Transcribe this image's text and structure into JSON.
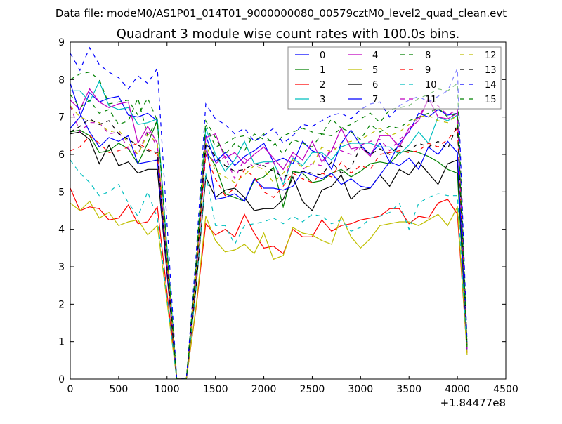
{
  "header": {
    "suptitle": "Data file: modeM0/AS1P01_014T01_9000000080_00579cztM0_level2_quad_clean.evt"
  },
  "chart_data": {
    "type": "line",
    "title": "Quadrant 3 module wise count rates with 100.0s bins.",
    "xlabel": "",
    "ylabel": "",
    "x_offset_label": "+1.84477e8",
    "xlim": [
      0,
      4500
    ],
    "ylim": [
      0,
      9
    ],
    "xticks": [
      "0",
      "500",
      "1000",
      "1500",
      "2000",
      "2500",
      "3000",
      "3500",
      "4000",
      "4500"
    ],
    "yticks": [
      "0",
      "1",
      "2",
      "3",
      "4",
      "5",
      "6",
      "7",
      "8",
      "9"
    ],
    "grid": false,
    "legend_placement": "top-right",
    "legend_columns": 4,
    "x": [
      0,
      100,
      200,
      300,
      400,
      500,
      600,
      700,
      800,
      900,
      1000,
      1100,
      1200,
      1300,
      1400,
      1500,
      1600,
      1700,
      1800,
      1900,
      2000,
      2100,
      2200,
      2300,
      2400,
      2500,
      2600,
      2700,
      2800,
      2900,
      3000,
      3100,
      3200,
      3300,
      3400,
      3500,
      3600,
      3700,
      3800,
      3900,
      4000,
      4100
    ],
    "series": [
      {
        "name": "0",
        "color": "#0000ff",
        "dashed": false,
        "values": [
          6.7,
          7.0,
          7.65,
          7.4,
          7.5,
          7.55,
          7.05,
          7.0,
          7.1,
          6.9,
          3.45,
          0,
          0,
          2.9,
          6.5,
          5.8,
          6.05,
          5.7,
          5.95,
          6.1,
          6.3,
          5.8,
          5.9,
          5.75,
          6.35,
          6.1,
          6.0,
          5.6,
          6.3,
          6.65,
          6.25,
          6.0,
          6.3,
          5.8,
          6.3,
          6.6,
          7.1,
          7.0,
          7.2,
          7.05,
          7.1,
          0.8
        ]
      },
      {
        "name": "1",
        "color": "#008000",
        "dashed": false,
        "values": [
          6.6,
          6.65,
          6.5,
          6.05,
          6.1,
          6.3,
          6.15,
          5.75,
          6.3,
          6.9,
          3.45,
          0,
          0,
          2.75,
          6.1,
          5.7,
          4.95,
          4.85,
          4.75,
          5.3,
          5.4,
          5.65,
          4.6,
          5.55,
          5.5,
          5.25,
          5.3,
          5.5,
          5.6,
          5.4,
          5.55,
          5.75,
          5.8,
          5.75,
          6.05,
          6.1,
          6.05,
          5.95,
          5.8,
          5.6,
          5.5,
          0.8
        ]
      },
      {
        "name": "2",
        "color": "#ff0000",
        "dashed": false,
        "values": [
          5.1,
          4.5,
          4.6,
          4.55,
          4.25,
          4.3,
          4.65,
          4.15,
          4.2,
          4.6,
          2.3,
          0,
          0,
          1.9,
          4.15,
          3.85,
          4.0,
          3.8,
          4.4,
          3.9,
          3.5,
          3.55,
          3.35,
          4.0,
          3.8,
          3.8,
          4.25,
          3.95,
          4.1,
          4.15,
          4.25,
          4.3,
          4.35,
          4.55,
          4.55,
          4.15,
          4.35,
          4.3,
          4.7,
          4.8,
          4.4,
          0.7
        ]
      },
      {
        "name": "3",
        "color": "#00bfbf",
        "dashed": false,
        "values": [
          7.7,
          7.7,
          7.4,
          7.95,
          7.3,
          7.2,
          7.25,
          6.8,
          6.85,
          6.95,
          3.5,
          0,
          0,
          3.0,
          6.7,
          6.0,
          5.55,
          5.85,
          6.35,
          5.75,
          5.8,
          5.8,
          5.2,
          5.9,
          5.7,
          6.05,
          6.05,
          5.85,
          6.2,
          6.3,
          6.3,
          6.3,
          6.2,
          6.2,
          6.0,
          6.25,
          6.6,
          6.3,
          7.0,
          6.9,
          7.05,
          0.8
        ]
      },
      {
        "name": "4",
        "color": "#bf00bf",
        "dashed": false,
        "values": [
          7.45,
          7.2,
          7.75,
          7.4,
          7.25,
          7.35,
          7.4,
          6.3,
          6.75,
          6.3,
          3.15,
          0,
          0,
          2.9,
          6.45,
          6.55,
          5.9,
          6.05,
          5.75,
          6.0,
          6.2,
          5.9,
          5.6,
          6.05,
          5.85,
          6.35,
          5.8,
          6.1,
          6.7,
          6.15,
          6.2,
          5.95,
          6.5,
          6.5,
          6.2,
          6.7,
          6.9,
          7.5,
          7.0,
          6.95,
          7.1,
          0.8
        ]
      },
      {
        "name": "5",
        "color": "#bfbf00",
        "dashed": false,
        "values": [
          4.7,
          4.5,
          4.75,
          4.3,
          4.45,
          4.1,
          4.2,
          4.25,
          3.85,
          4.1,
          2.05,
          0,
          0,
          1.95,
          4.35,
          3.7,
          3.4,
          3.45,
          3.6,
          3.35,
          3.9,
          3.2,
          3.3,
          4.05,
          3.9,
          3.85,
          3.7,
          3.6,
          4.35,
          3.8,
          3.5,
          3.75,
          4.1,
          4.15,
          4.2,
          4.2,
          4.1,
          4.25,
          4.4,
          4.1,
          4.6,
          0.65
        ]
      },
      {
        "name": "6",
        "color": "#000000",
        "dashed": false,
        "values": [
          6.55,
          6.6,
          6.4,
          5.75,
          6.25,
          5.7,
          5.8,
          5.5,
          5.6,
          5.6,
          2.8,
          0,
          0,
          2.45,
          5.4,
          4.85,
          5.05,
          5.1,
          4.85,
          4.5,
          4.55,
          4.55,
          4.8,
          5.4,
          4.75,
          4.5,
          5.05,
          5.15,
          5.45,
          4.8,
          5.05,
          5.1,
          5.45,
          5.15,
          5.6,
          5.45,
          5.8,
          5.5,
          5.2,
          5.75,
          5.85,
          0.8
        ]
      },
      {
        "name": "7",
        "color": "#0000ff",
        "dashed": false,
        "values": [
          7.9,
          7.1,
          6.6,
          6.2,
          6.45,
          6.35,
          6.5,
          5.75,
          5.8,
          5.85,
          2.9,
          0,
          0,
          2.85,
          6.3,
          4.8,
          4.85,
          4.95,
          4.75,
          5.35,
          5.1,
          5.1,
          5.05,
          5.15,
          5.55,
          5.45,
          5.35,
          5.5,
          5.2,
          5.35,
          5.15,
          5.1,
          5.45,
          5.8,
          5.7,
          5.9,
          5.6,
          6.2,
          6.0,
          6.35,
          6.05,
          0.8
        ]
      },
      {
        "name": "8",
        "color": "#008000",
        "dashed": true,
        "values": [
          8.0,
          8.15,
          8.2,
          8.0,
          7.35,
          7.4,
          7.45,
          7.05,
          7.5,
          6.9,
          3.45,
          0,
          0,
          3.05,
          6.8,
          6.2,
          6.3,
          6.45,
          6.5,
          6.35,
          6.55,
          6.25,
          6.5,
          6.6,
          6.7,
          6.6,
          6.55,
          6.95,
          6.7,
          6.8,
          6.95,
          7.1,
          6.85,
          7.2,
          7.25,
          7.3,
          7.5,
          7.6,
          7.75,
          7.7,
          7.9,
          0.9
        ]
      },
      {
        "name": "9",
        "color": "#ff0000",
        "dashed": true,
        "values": [
          6.1,
          6.2,
          6.5,
          6.3,
          6.05,
          6.1,
          6.2,
          6.3,
          6.15,
          6.0,
          3.0,
          0,
          0,
          2.7,
          6.0,
          5.35,
          4.9,
          5.1,
          5.6,
          5.4,
          5.0,
          4.85,
          5.15,
          5.5,
          5.35,
          5.25,
          5.5,
          5.4,
          5.8,
          5.5,
          5.7,
          5.6,
          6.0,
          6.05,
          6.1,
          6.05,
          6.1,
          6.3,
          6.2,
          6.4,
          6.7,
          0.8
        ]
      },
      {
        "name": "10",
        "color": "#00bfbf",
        "dashed": true,
        "values": [
          5.85,
          5.5,
          5.25,
          4.9,
          5.0,
          5.2,
          4.7,
          4.35,
          5.0,
          4.3,
          2.15,
          0,
          0,
          2.45,
          5.5,
          4.1,
          4.1,
          3.6,
          4.1,
          4.15,
          4.2,
          4.3,
          4.15,
          4.35,
          4.2,
          4.4,
          4.35,
          4.15,
          4.25,
          3.95,
          4.05,
          4.3,
          4.35,
          4.45,
          4.7,
          4.0,
          4.7,
          4.85,
          4.95,
          4.9,
          4.9,
          0.75
        ]
      },
      {
        "name": "11",
        "color": "#bf00bf",
        "dashed": true,
        "values": [
          7.3,
          6.6,
          6.85,
          6.85,
          6.55,
          6.6,
          6.15,
          6.0,
          6.65,
          6.2,
          3.1,
          0,
          0,
          2.75,
          6.1,
          5.75,
          5.95,
          5.35,
          5.9,
          5.65,
          5.75,
          5.8,
          5.25,
          5.95,
          5.6,
          5.75,
          5.7,
          6.2,
          6.1,
          6.0,
          6.25,
          6.35,
          6.4,
          6.1,
          6.4,
          6.6,
          7.0,
          7.45,
          7.3,
          7.05,
          7.2,
          0.8
        ]
      },
      {
        "name": "12",
        "color": "#bfbf00",
        "dashed": true,
        "values": [
          7.3,
          7.0,
          6.9,
          6.85,
          6.6,
          6.65,
          6.3,
          6.0,
          6.55,
          6.3,
          3.15,
          0,
          0,
          2.85,
          6.3,
          5.55,
          5.4,
          5.25,
          5.45,
          5.7,
          5.6,
          5.25,
          5.5,
          5.85,
          5.65,
          5.7,
          6.2,
          6.05,
          6.3,
          6.35,
          6.4,
          6.55,
          6.7,
          6.5,
          6.6,
          6.8,
          7.0,
          7.05,
          6.9,
          6.85,
          7.05,
          0.8
        ]
      },
      {
        "name": "13",
        "color": "#000000",
        "dashed": true,
        "values": [
          6.6,
          6.75,
          6.95,
          6.8,
          6.9,
          6.55,
          6.4,
          6.25,
          6.1,
          6.05,
          3.0,
          0,
          0,
          2.85,
          6.3,
          5.95,
          5.7,
          5.55,
          5.6,
          5.75,
          5.7,
          5.55,
          5.4,
          5.5,
          5.55,
          5.5,
          5.45,
          5.8,
          5.5,
          5.65,
          6.2,
          6.0,
          6.15,
          6.0,
          6.25,
          6.1,
          6.3,
          6.2,
          6.35,
          6.15,
          6.8,
          0.9
        ]
      },
      {
        "name": "14",
        "color": "#0000ff",
        "dashed": true,
        "values": [
          8.7,
          8.25,
          8.85,
          8.4,
          8.2,
          8.05,
          7.75,
          8.1,
          7.9,
          8.3,
          4.15,
          0,
          0,
          3.3,
          7.35,
          6.95,
          6.8,
          6.55,
          6.7,
          6.35,
          6.5,
          6.7,
          6.3,
          6.5,
          6.8,
          6.75,
          6.9,
          7.05,
          7.1,
          6.95,
          7.2,
          7.35,
          7.4,
          7.0,
          7.3,
          7.45,
          7.55,
          7.4,
          7.55,
          7.7,
          8.3,
          1.0
        ]
      },
      {
        "name": "15",
        "color": "#008000",
        "dashed": true,
        "values": [
          7.6,
          7.25,
          7.45,
          7.1,
          7.2,
          6.8,
          6.9,
          7.5,
          6.5,
          6.9,
          3.45,
          0,
          0,
          3.1,
          6.9,
          6.45,
          6.0,
          6.3,
          6.1,
          6.55,
          6.4,
          6.35,
          6.0,
          6.4,
          6.3,
          6.2,
          6.55,
          6.5,
          6.7,
          6.6,
          6.4,
          6.8,
          6.6,
          6.75,
          6.7,
          6.9,
          7.0,
          7.1,
          7.25,
          7.0,
          7.1,
          0.85
        ]
      }
    ]
  }
}
